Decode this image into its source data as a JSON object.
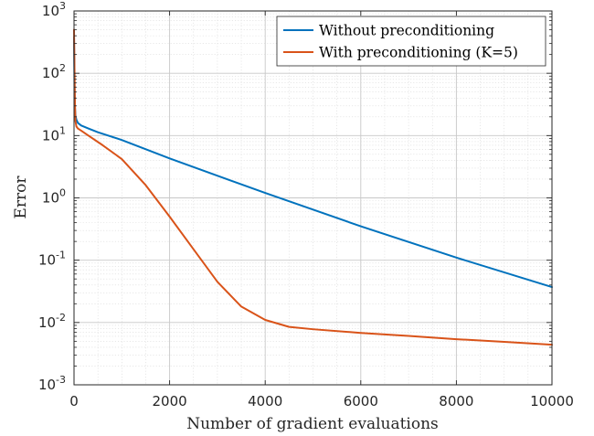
{
  "chart_data": {
    "type": "line",
    "title": "",
    "xlabel": "Number of gradient evaluations",
    "ylabel": "Error",
    "xlim": [
      0,
      10000
    ],
    "ylim": [
      0.001,
      1000
    ],
    "yscale": "log",
    "grid": true,
    "minor_grid": true,
    "legend_position": "top-right",
    "xticks": [
      0,
      2000,
      4000,
      6000,
      8000,
      10000
    ],
    "xtick_labels": [
      "0",
      "2000",
      "4000",
      "6000",
      "8000",
      "10000"
    ],
    "yticks": [
      0.001,
      0.01,
      0.1,
      1,
      10,
      100,
      1000
    ],
    "ytick_labels": [
      {
        "base": "10",
        "exp": "-3"
      },
      {
        "base": "10",
        "exp": "-2"
      },
      {
        "base": "10",
        "exp": "-1"
      },
      {
        "base": "10",
        "exp": "0"
      },
      {
        "base": "10",
        "exp": "1"
      },
      {
        "base": "10",
        "exp": "2"
      },
      {
        "base": "10",
        "exp": "3"
      }
    ],
    "series": [
      {
        "name": "Without preconditioning",
        "color": "#0072BD",
        "x": [
          0,
          10,
          20,
          30,
          50,
          80,
          150,
          300,
          500,
          1000,
          2000,
          4000,
          6000,
          8000,
          10000
        ],
        "y": [
          380,
          60,
          28,
          21,
          18,
          16,
          14.5,
          13,
          11.3,
          8.5,
          4.3,
          1.2,
          0.35,
          0.11,
          0.037
        ]
      },
      {
        "name": "With preconditioning (K=5)",
        "color": "#D95319",
        "x": [
          0,
          10,
          20,
          30,
          50,
          80,
          150,
          300,
          600,
          1000,
          1500,
          2000,
          2500,
          3000,
          3500,
          4000,
          4500,
          5000,
          6000,
          7000,
          8000,
          9000,
          10000
        ],
        "y": [
          500,
          120,
          30,
          17,
          14,
          13,
          12,
          10,
          7,
          4.2,
          1.6,
          0.5,
          0.15,
          0.045,
          0.018,
          0.011,
          0.0085,
          0.0078,
          0.0068,
          0.0061,
          0.0054,
          0.0049,
          0.0044
        ]
      }
    ]
  }
}
